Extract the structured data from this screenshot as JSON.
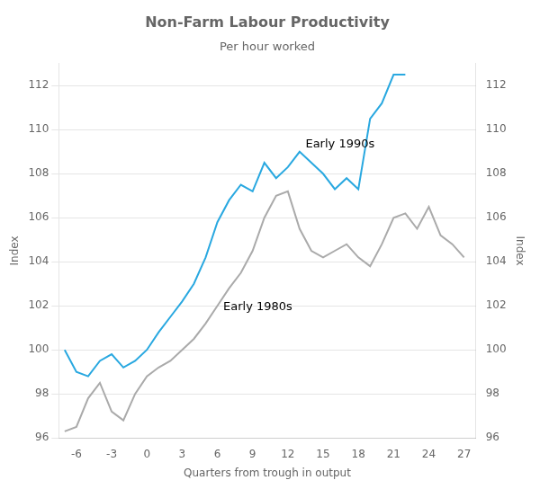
{
  "chart_data": {
    "type": "line",
    "title": "Non-Farm Labour Productivity",
    "subtitle": "Per hour worked",
    "xlabel": "Quarters from trough in output",
    "ylabel": "Index",
    "y2label": "Index",
    "xlim": [
      -7.5,
      28
    ],
    "xticks": [
      -6,
      -3,
      0,
      3,
      6,
      9,
      12,
      15,
      18,
      21,
      24,
      27
    ],
    "ylim": [
      96,
      113
    ],
    "yticks": [
      96,
      98,
      100,
      102,
      104,
      106,
      108,
      110,
      112
    ],
    "y2lim": [
      96,
      113
    ],
    "y2ticks": [
      96,
      98,
      100,
      102,
      104,
      106,
      108,
      110,
      112
    ],
    "grid": "y",
    "series": [
      {
        "color": "#29a8e0",
        "x": [
          -7,
          -6,
          -5,
          -4,
          -3,
          -2,
          -1,
          0,
          1,
          2,
          3,
          4,
          5,
          6,
          7,
          8,
          9,
          10,
          11,
          12,
          13,
          14,
          15,
          16,
          17,
          18,
          19,
          20,
          21,
          22
        ],
        "values": [
          100.0,
          99.0,
          98.8,
          99.5,
          99.8,
          99.2,
          99.5,
          100.0,
          100.8,
          101.5,
          102.2,
          103.0,
          104.2,
          105.8,
          106.8,
          107.5,
          107.2,
          108.5,
          107.8,
          108.3,
          109.0,
          108.5,
          108.0,
          107.3,
          107.8,
          107.3,
          110.5,
          111.2,
          112.5,
          112.5
        ]
      },
      {
        "color": "#aaaaaa",
        "x": [
          -7,
          -6,
          -5,
          -4,
          -3,
          -2,
          -1,
          0,
          1,
          2,
          3,
          4,
          5,
          6,
          7,
          8,
          9,
          10,
          11,
          12,
          13,
          14,
          15,
          16,
          17,
          18,
          19,
          20,
          21,
          22,
          23,
          24,
          25,
          26,
          27
        ],
        "values": [
          96.3,
          96.5,
          97.8,
          98.5,
          97.2,
          96.8,
          98.0,
          98.8,
          99.2,
          99.5,
          100.0,
          100.5,
          101.2,
          102.0,
          102.8,
          103.5,
          104.5,
          106.0,
          107.0,
          107.2,
          105.5,
          104.5,
          104.2,
          104.5,
          104.8,
          104.2,
          103.8,
          104.8,
          106.0,
          106.2,
          105.5,
          106.5,
          105.2,
          104.8,
          104.2
        ]
      }
    ],
    "annotations": [
      {
        "text": "Early 1990s",
        "x": 13.5,
        "y": 109.2
      },
      {
        "text": "Early 1980s",
        "x": 6.5,
        "y": 101.8
      }
    ]
  }
}
